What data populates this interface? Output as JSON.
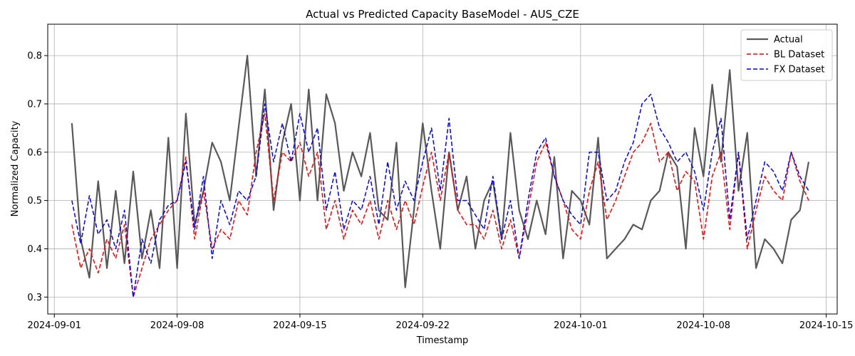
{
  "chart_data": {
    "type": "line",
    "title": "Actual vs Predicted Capacity BaseModel - AUS_CZE",
    "xlabel": "Timestamp",
    "ylabel": "Normalized Capacity",
    "x_range": [
      "2024-08-31T15:00",
      "2024-10-15T15:00"
    ],
    "ylim": [
      0.265,
      0.865
    ],
    "x_ticks": [
      "2024-09-01",
      "2024-09-08",
      "2024-09-15",
      "2024-09-22",
      "2024-10-01",
      "2024-10-08",
      "2024-10-15"
    ],
    "y_ticks": [
      0.3,
      0.4,
      0.5,
      0.6,
      0.7,
      0.8
    ],
    "y_tick_labels": [
      "0.3",
      "0.4",
      "0.5",
      "0.6",
      "0.7",
      "0.8"
    ],
    "grid": true,
    "legend_position": "upper right",
    "series": [
      {
        "name": "Actual",
        "color": "#595959",
        "style": "solid",
        "x": [
          "2024-09-02",
          "2024-09-02T12:00",
          "2024-09-03",
          "2024-09-03T12:00",
          "2024-09-04",
          "2024-09-04T12:00",
          "2024-09-05",
          "2024-09-05T12:00",
          "2024-09-06",
          "2024-09-06T12:00",
          "2024-09-07",
          "2024-09-07T12:00",
          "2024-09-08",
          "2024-09-08T12:00",
          "2024-09-09",
          "2024-09-09T12:00",
          "2024-09-10",
          "2024-09-10T12:00",
          "2024-09-11",
          "2024-09-11T12:00",
          "2024-09-12",
          "2024-09-12T12:00",
          "2024-09-13",
          "2024-09-13T12:00",
          "2024-09-14",
          "2024-09-14T12:00",
          "2024-09-15",
          "2024-09-15T12:00",
          "2024-09-16",
          "2024-09-16T12:00",
          "2024-09-17",
          "2024-09-17T12:00",
          "2024-09-18",
          "2024-09-18T12:00",
          "2024-09-19",
          "2024-09-19T12:00",
          "2024-09-20",
          "2024-09-20T12:00",
          "2024-09-21",
          "2024-09-21T12:00",
          "2024-09-22",
          "2024-09-22T12:00",
          "2024-09-23",
          "2024-09-23T12:00",
          "2024-09-24",
          "2024-09-24T12:00",
          "2024-09-25",
          "2024-09-25T12:00",
          "2024-09-26",
          "2024-09-26T12:00",
          "2024-09-27",
          "2024-09-27T12:00",
          "2024-09-28",
          "2024-09-28T12:00",
          "2024-09-29",
          "2024-09-29T12:00",
          "2024-09-30",
          "2024-09-30T12:00",
          "2024-10-01",
          "2024-10-01T12:00",
          "2024-10-02",
          "2024-10-02T12:00",
          "2024-10-03",
          "2024-10-03T12:00",
          "2024-10-04",
          "2024-10-04T12:00",
          "2024-10-05",
          "2024-10-05T12:00",
          "2024-10-06",
          "2024-10-06T12:00",
          "2024-10-07",
          "2024-10-07T12:00",
          "2024-10-08",
          "2024-10-08T12:00",
          "2024-10-09",
          "2024-10-09T12:00",
          "2024-10-10",
          "2024-10-10T12:00",
          "2024-10-11",
          "2024-10-11T12:00",
          "2024-10-12",
          "2024-10-12T12:00",
          "2024-10-13",
          "2024-10-13T12:00",
          "2024-10-14"
        ],
        "y": [
          0.66,
          0.42,
          0.34,
          0.54,
          0.36,
          0.52,
          0.37,
          0.56,
          0.38,
          0.48,
          0.36,
          0.63,
          0.36,
          0.68,
          0.45,
          0.52,
          0.62,
          0.58,
          0.5,
          0.65,
          0.8,
          0.55,
          0.73,
          0.48,
          0.62,
          0.7,
          0.5,
          0.73,
          0.5,
          0.72,
          0.66,
          0.52,
          0.6,
          0.55,
          0.64,
          0.48,
          0.46,
          0.62,
          0.32,
          0.48,
          0.66,
          0.52,
          0.4,
          0.6,
          0.48,
          0.55,
          0.4,
          0.5,
          0.54,
          0.42,
          0.64,
          0.48,
          0.42,
          0.5,
          0.43,
          0.59,
          0.38,
          0.52,
          0.5,
          0.45,
          0.63,
          0.38,
          0.4,
          0.42,
          0.45,
          0.44,
          0.5,
          0.52,
          0.6,
          0.57,
          0.4,
          0.65,
          0.55,
          0.74,
          0.58,
          0.77,
          0.52,
          0.64,
          0.36,
          0.42,
          0.4,
          0.37,
          0.46,
          0.48,
          0.58
        ],
        "y_note": "approximate trace read from the plot"
      },
      {
        "name": "BL Dataset",
        "color": "#ff0000",
        "style": "dashed",
        "x": [
          "2024-09-02",
          "2024-09-02T12:00",
          "2024-09-03",
          "2024-09-03T12:00",
          "2024-09-04",
          "2024-09-04T12:00",
          "2024-09-05",
          "2024-09-05T12:00",
          "2024-09-06",
          "2024-09-06T12:00",
          "2024-09-07",
          "2024-09-07T12:00",
          "2024-09-08",
          "2024-09-08T12:00",
          "2024-09-09",
          "2024-09-09T12:00",
          "2024-09-10",
          "2024-09-10T12:00",
          "2024-09-11",
          "2024-09-11T12:00",
          "2024-09-12",
          "2024-09-12T12:00",
          "2024-09-13",
          "2024-09-13T12:00",
          "2024-09-14",
          "2024-09-14T12:00",
          "2024-09-15",
          "2024-09-15T12:00",
          "2024-09-16",
          "2024-09-16T12:00",
          "2024-09-17",
          "2024-09-17T12:00",
          "2024-09-18",
          "2024-09-18T12:00",
          "2024-09-19",
          "2024-09-19T12:00",
          "2024-09-20",
          "2024-09-20T12:00",
          "2024-09-21",
          "2024-09-21T12:00",
          "2024-09-22",
          "2024-09-22T12:00",
          "2024-09-23",
          "2024-09-23T12:00",
          "2024-09-24",
          "2024-09-24T12:00",
          "2024-09-25",
          "2024-09-25T12:00",
          "2024-09-26",
          "2024-09-26T12:00",
          "2024-09-27",
          "2024-09-27T12:00",
          "2024-09-28",
          "2024-09-28T12:00",
          "2024-09-29",
          "2024-09-29T12:00",
          "2024-09-30",
          "2024-09-30T12:00",
          "2024-10-01",
          "2024-10-01T12:00",
          "2024-10-02",
          "2024-10-02T12:00",
          "2024-10-03",
          "2024-10-03T12:00",
          "2024-10-04",
          "2024-10-04T12:00",
          "2024-10-05",
          "2024-10-05T12:00",
          "2024-10-06",
          "2024-10-06T12:00",
          "2024-10-07",
          "2024-10-07T12:00",
          "2024-10-08",
          "2024-10-08T12:00",
          "2024-10-09",
          "2024-10-09T12:00",
          "2024-10-10",
          "2024-10-10T12:00",
          "2024-10-11",
          "2024-10-11T12:00",
          "2024-10-12",
          "2024-10-12T12:00",
          "2024-10-13",
          "2024-10-13T12:00",
          "2024-10-14"
        ],
        "y": [
          0.45,
          0.36,
          0.4,
          0.35,
          0.42,
          0.38,
          0.45,
          0.3,
          0.36,
          0.42,
          0.45,
          0.48,
          0.5,
          0.59,
          0.42,
          0.52,
          0.4,
          0.44,
          0.42,
          0.5,
          0.47,
          0.6,
          0.68,
          0.5,
          0.6,
          0.58,
          0.62,
          0.55,
          0.6,
          0.44,
          0.5,
          0.42,
          0.48,
          0.45,
          0.5,
          0.42,
          0.5,
          0.44,
          0.5,
          0.45,
          0.53,
          0.6,
          0.5,
          0.6,
          0.48,
          0.45,
          0.45,
          0.42,
          0.48,
          0.4,
          0.46,
          0.38,
          0.48,
          0.58,
          0.62,
          0.55,
          0.5,
          0.44,
          0.42,
          0.52,
          0.58,
          0.46,
          0.5,
          0.55,
          0.6,
          0.62,
          0.66,
          0.58,
          0.6,
          0.52,
          0.56,
          0.54,
          0.42,
          0.55,
          0.6,
          0.44,
          0.6,
          0.4,
          0.48,
          0.55,
          0.52,
          0.5,
          0.6,
          0.54,
          0.5
        ],
        "y_note": "approximate trace read from the plot"
      },
      {
        "name": "FX Dataset",
        "color": "#0000ff",
        "style": "dashed",
        "x": [
          "2024-09-02",
          "2024-09-02T12:00",
          "2024-09-03",
          "2024-09-03T12:00",
          "2024-09-04",
          "2024-09-04T12:00",
          "2024-09-05",
          "2024-09-05T12:00",
          "2024-09-06",
          "2024-09-06T12:00",
          "2024-09-07",
          "2024-09-07T12:00",
          "2024-09-08",
          "2024-09-08T12:00",
          "2024-09-09",
          "2024-09-09T12:00",
          "2024-09-10",
          "2024-09-10T12:00",
          "2024-09-11",
          "2024-09-11T12:00",
          "2024-09-12",
          "2024-09-12T12:00",
          "2024-09-13",
          "2024-09-13T12:00",
          "2024-09-14",
          "2024-09-14T12:00",
          "2024-09-15",
          "2024-09-15T12:00",
          "2024-09-16",
          "2024-09-16T12:00",
          "2024-09-17",
          "2024-09-17T12:00",
          "2024-09-18",
          "2024-09-18T12:00",
          "2024-09-19",
          "2024-09-19T12:00",
          "2024-09-20",
          "2024-09-20T12:00",
          "2024-09-21",
          "2024-09-21T12:00",
          "2024-09-22",
          "2024-09-22T12:00",
          "2024-09-23",
          "2024-09-23T12:00",
          "2024-09-24",
          "2024-09-24T12:00",
          "2024-09-25",
          "2024-09-25T12:00",
          "2024-09-26",
          "2024-09-26T12:00",
          "2024-09-27",
          "2024-09-27T12:00",
          "2024-09-28",
          "2024-09-28T12:00",
          "2024-09-29",
          "2024-09-29T12:00",
          "2024-09-30",
          "2024-09-30T12:00",
          "2024-10-01",
          "2024-10-01T12:00",
          "2024-10-02",
          "2024-10-02T12:00",
          "2024-10-03",
          "2024-10-03T12:00",
          "2024-10-04",
          "2024-10-04T12:00",
          "2024-10-05",
          "2024-10-05T12:00",
          "2024-10-06",
          "2024-10-06T12:00",
          "2024-10-07",
          "2024-10-07T12:00",
          "2024-10-08",
          "2024-10-08T12:00",
          "2024-10-09",
          "2024-10-09T12:00",
          "2024-10-10",
          "2024-10-10T12:00",
          "2024-10-11",
          "2024-10-11T12:00",
          "2024-10-12",
          "2024-10-12T12:00",
          "2024-10-13",
          "2024-10-13T12:00",
          "2024-10-14"
        ],
        "y": [
          0.5,
          0.41,
          0.51,
          0.43,
          0.46,
          0.4,
          0.48,
          0.3,
          0.42,
          0.37,
          0.46,
          0.49,
          0.5,
          0.58,
          0.44,
          0.55,
          0.38,
          0.5,
          0.45,
          0.52,
          0.5,
          0.55,
          0.7,
          0.58,
          0.66,
          0.58,
          0.68,
          0.6,
          0.65,
          0.48,
          0.56,
          0.44,
          0.5,
          0.48,
          0.55,
          0.45,
          0.58,
          0.48,
          0.54,
          0.5,
          0.58,
          0.65,
          0.52,
          0.67,
          0.5,
          0.5,
          0.47,
          0.44,
          0.55,
          0.42,
          0.5,
          0.38,
          0.5,
          0.6,
          0.63,
          0.55,
          0.5,
          0.47,
          0.45,
          0.6,
          0.6,
          0.5,
          0.52,
          0.58,
          0.62,
          0.7,
          0.72,
          0.65,
          0.62,
          0.58,
          0.6,
          0.56,
          0.48,
          0.6,
          0.67,
          0.46,
          0.6,
          0.42,
          0.5,
          0.58,
          0.56,
          0.52,
          0.6,
          0.55,
          0.52
        ],
        "y_note": "approximate trace read from the plot"
      }
    ]
  }
}
